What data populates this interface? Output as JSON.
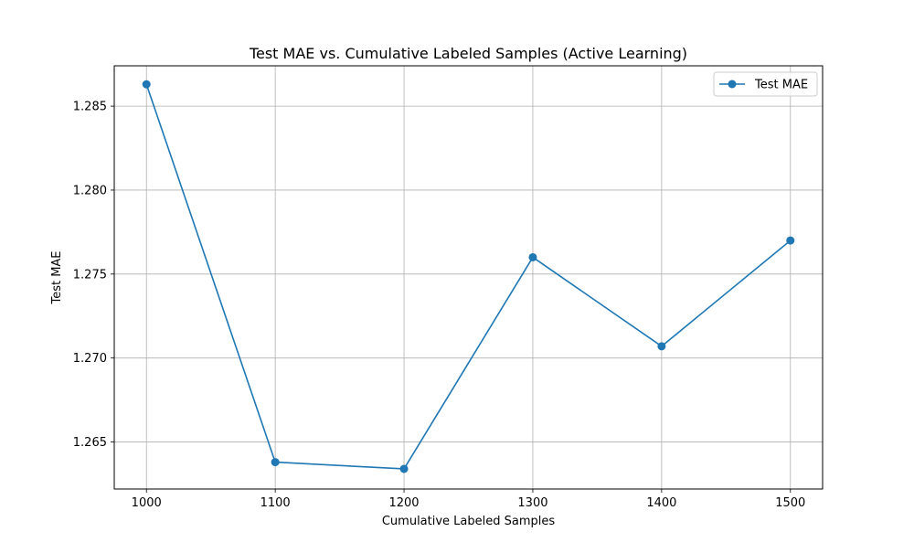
{
  "chart_data": {
    "type": "line",
    "title": "Test MAE vs. Cumulative Labeled Samples (Active Learning)",
    "xlabel": "Cumulative Labeled Samples",
    "ylabel": "Test MAE",
    "xlim": [
      975,
      1525
    ],
    "ylim": [
      1.2622,
      1.2874
    ],
    "x_ticks": [
      1000,
      1100,
      1200,
      1300,
      1400,
      1500
    ],
    "y_ticks": [
      1.265,
      1.27,
      1.275,
      1.28,
      1.285
    ],
    "y_tick_decimals": 3,
    "grid": true,
    "legend": "top-right",
    "series": [
      {
        "name": "Test MAE",
        "color": "#1f77b4",
        "marker": "circle",
        "x": [
          1000,
          1100,
          1200,
          1300,
          1400,
          1500
        ],
        "values": [
          1.2863,
          1.2638,
          1.2634,
          1.276,
          1.2707,
          1.277
        ]
      }
    ]
  }
}
